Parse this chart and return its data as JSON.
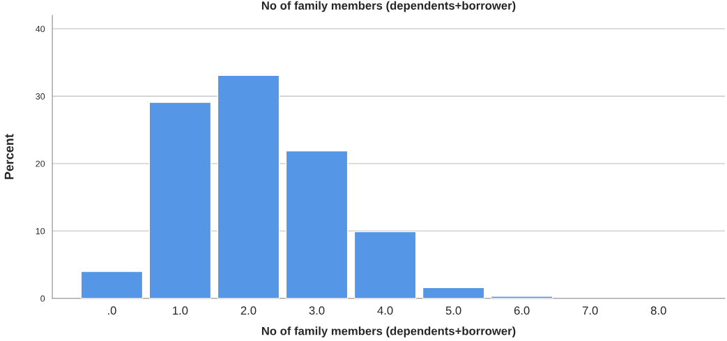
{
  "chart_data": {
    "type": "bar",
    "title": "No of family members (dependents+borrower)",
    "xlabel": "No of family members (dependents+borrower)",
    "ylabel": "Percent",
    "categories": [
      ".0",
      "1.0",
      "2.0",
      "3.0",
      "4.0",
      "5.0",
      "6.0",
      "7.0",
      "8.0"
    ],
    "values": [
      4.0,
      29.1,
      33.1,
      21.9,
      9.9,
      1.6,
      0.3,
      null,
      null
    ],
    "color": "#5596e6",
    "ylim": [
      0,
      42
    ],
    "yticks": [
      0,
      10,
      20,
      30,
      40
    ],
    "grid": "y"
  }
}
